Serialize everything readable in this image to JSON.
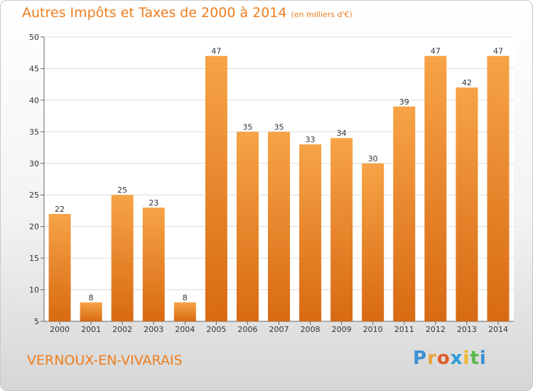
{
  "title": "Autres Impôts et Taxes de 2000 à 2014",
  "unit_note": "(en milliers d'€)",
  "place_name": "VERNOUX-EN-VIVARAIS",
  "logo": {
    "letters": [
      "P",
      "r",
      "o",
      "x",
      "i",
      "t",
      "i"
    ],
    "colors": [
      "#3b8fd6",
      "#e8a33c",
      "#e25c2a",
      "#2c9ad8",
      "#f0b828",
      "#59b84a",
      "#3b8fd6"
    ]
  },
  "colors": {
    "accent": "#ee7d1e",
    "bar_light": "#f7a347",
    "bar_dark": "#d86a12"
  },
  "chart_data": {
    "type": "bar",
    "categories": [
      "2000",
      "2001",
      "2002",
      "2003",
      "2004",
      "2005",
      "2006",
      "2007",
      "2008",
      "2009",
      "2010",
      "2011",
      "2012",
      "2013",
      "2014"
    ],
    "values": [
      22,
      8,
      25,
      23,
      8,
      47,
      35,
      35,
      33,
      34,
      30,
      39,
      47,
      42,
      47
    ],
    "ylim": [
      5,
      50
    ],
    "yticks": [
      5,
      10,
      15,
      20,
      25,
      30,
      35,
      40,
      45,
      50
    ],
    "grid": true,
    "title": "Autres Impôts et Taxes de 2000 à 2014",
    "xlabel": "",
    "ylabel": ""
  }
}
